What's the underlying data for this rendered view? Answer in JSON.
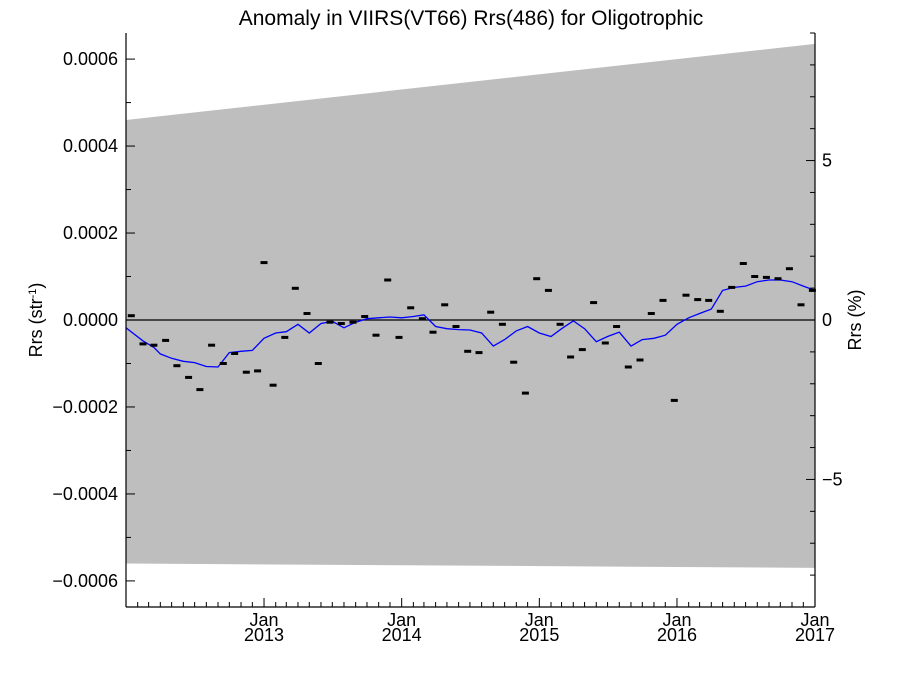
{
  "chart_data": {
    "type": "scatter",
    "title": "Anomaly in VIIRS(VT66) Rrs(486) for Oligotrophic",
    "ylabel": "Rrs (str",
    "ylabel_exponent": "-1",
    "ylabel_suffix": ")",
    "y2label": "Rrs (%)",
    "xlim": [
      "2012-01-01",
      "2017-01-01"
    ],
    "ylim": [
      -0.00066,
      0.00066
    ],
    "y2lim": [
      -9.0,
      9.0
    ],
    "x_ticks": [
      {
        "date": "2013-01-01",
        "month": "Jan",
        "year": "2013"
      },
      {
        "date": "2014-01-01",
        "month": "Jan",
        "year": "2014"
      },
      {
        "date": "2015-01-01",
        "month": "Jan",
        "year": "2015"
      },
      {
        "date": "2016-01-01",
        "month": "Jan",
        "year": "2016"
      },
      {
        "date": "2017-01-01",
        "month": "Jan",
        "year": "2017"
      }
    ],
    "y_ticks": [
      {
        "value": 0.0006,
        "label": "0.0006"
      },
      {
        "value": 0.0004,
        "label": "0.0004"
      },
      {
        "value": 0.0002,
        "label": "0.0002"
      },
      {
        "value": 0.0,
        "label": "0.0000"
      },
      {
        "value": -0.0002,
        "label": "−0.0002"
      },
      {
        "value": -0.0004,
        "label": "−0.0004"
      },
      {
        "value": -0.0006,
        "label": "−0.0006"
      }
    ],
    "y2_ticks": [
      {
        "value": 5,
        "label": "5"
      },
      {
        "value": 0,
        "label": "0"
      },
      {
        "value": -5,
        "label": "−5"
      }
    ],
    "reference_line": 0.0,
    "band": {
      "x": [
        "2012-01-01",
        "2017-01-01"
      ],
      "upper": [
        0.00046,
        0.000635
      ],
      "lower": [
        -0.00056,
        -0.00057
      ]
    },
    "colors": {
      "band": "#bebebe",
      "trend": "#0000ff",
      "points": "#000000"
    },
    "series": [
      {
        "type": "scatter",
        "points": [
          [
            "2012-01-15",
            1e-05
          ],
          [
            "2012-02-15",
            -5.5e-05
          ],
          [
            "2012-03-15",
            -5.8e-05
          ],
          [
            "2012-04-15",
            -4.7e-05
          ],
          [
            "2012-05-15",
            -0.000105
          ],
          [
            "2012-06-15",
            -0.000132
          ],
          [
            "2012-07-15",
            -0.00016
          ],
          [
            "2012-08-15",
            -5.8e-05
          ],
          [
            "2012-09-15",
            -0.0001
          ],
          [
            "2012-10-15",
            -7.7e-05
          ],
          [
            "2012-11-15",
            -0.00012
          ],
          [
            "2012-12-15",
            -0.000117
          ],
          [
            "2013-01-01",
            0.000132
          ],
          [
            "2013-01-25",
            -0.00015
          ],
          [
            "2013-02-25",
            -4e-05
          ],
          [
            "2013-03-25",
            7.3e-05
          ],
          [
            "2013-04-25",
            1.5e-05
          ],
          [
            "2013-05-25",
            -0.0001
          ],
          [
            "2013-06-25",
            -5e-06
          ],
          [
            "2013-07-25",
            -8e-06
          ],
          [
            "2013-08-25",
            -5e-06
          ],
          [
            "2013-09-25",
            8e-06
          ],
          [
            "2013-10-25",
            -3.5e-05
          ],
          [
            "2013-11-25",
            9.2e-05
          ],
          [
            "2013-12-25",
            -4e-05
          ],
          [
            "2014-01-25",
            2.8e-05
          ],
          [
            "2014-02-25",
            3e-06
          ],
          [
            "2014-03-25",
            -2.8e-05
          ],
          [
            "2014-04-25",
            3.5e-05
          ],
          [
            "2014-05-25",
            -1.5e-05
          ],
          [
            "2014-06-25",
            -7.2e-05
          ],
          [
            "2014-07-25",
            -7.5e-05
          ],
          [
            "2014-08-25",
            1.8e-05
          ],
          [
            "2014-09-25",
            -1e-05
          ],
          [
            "2014-10-25",
            -9.7e-05
          ],
          [
            "2014-11-25",
            -0.000168
          ],
          [
            "2014-12-25",
            9.5e-05
          ],
          [
            "2015-01-25",
            6.8e-05
          ],
          [
            "2015-02-25",
            -1e-05
          ],
          [
            "2015-03-25",
            -8.5e-05
          ],
          [
            "2015-04-25",
            -6.8e-05
          ],
          [
            "2015-05-25",
            4e-05
          ],
          [
            "2015-06-25",
            -5.3e-05
          ],
          [
            "2015-07-25",
            -1.5e-05
          ],
          [
            "2015-08-25",
            -0.000108
          ],
          [
            "2015-09-25",
            -9.2e-05
          ],
          [
            "2015-10-25",
            1.5e-05
          ],
          [
            "2015-11-25",
            4.5e-05
          ],
          [
            "2015-12-25",
            -0.000185
          ],
          [
            "2016-01-25",
            5.7e-05
          ],
          [
            "2016-02-25",
            4.7e-05
          ],
          [
            "2016-03-25",
            4.5e-05
          ],
          [
            "2016-04-25",
            2e-05
          ],
          [
            "2016-05-25",
            7.5e-05
          ],
          [
            "2016-06-25",
            0.00013
          ],
          [
            "2016-07-25",
            0.0001
          ],
          [
            "2016-08-25",
            9.8e-05
          ],
          [
            "2016-09-25",
            9.5e-05
          ],
          [
            "2016-10-25",
            0.000118
          ],
          [
            "2016-11-25",
            3.5e-05
          ],
          [
            "2016-12-25",
            6.8e-05
          ]
        ]
      },
      {
        "type": "line",
        "points": [
          [
            "2012-01-01",
            -1.8e-05
          ],
          [
            "2012-02-15",
            -4.8e-05
          ],
          [
            "2012-03-15",
            -6.3e-05
          ],
          [
            "2012-04-01",
            -7.8e-05
          ],
          [
            "2012-05-01",
            -8.8e-05
          ],
          [
            "2012-06-01",
            -9.5e-05
          ],
          [
            "2012-07-01",
            -9.8e-05
          ],
          [
            "2012-08-01",
            -0.000107
          ],
          [
            "2012-09-01",
            -0.000108
          ],
          [
            "2012-10-01",
            -7.5e-05
          ],
          [
            "2012-11-01",
            -7.2e-05
          ],
          [
            "2012-12-01",
            -7e-05
          ],
          [
            "2013-01-01",
            -4.2e-05
          ],
          [
            "2013-02-01",
            -3e-05
          ],
          [
            "2013-03-01",
            -2.7e-05
          ],
          [
            "2013-04-01",
            -1e-05
          ],
          [
            "2013-05-01",
            -3e-05
          ],
          [
            "2013-06-01",
            -8e-06
          ],
          [
            "2013-07-01",
            -3e-06
          ],
          [
            "2013-08-01",
            -1.8e-05
          ],
          [
            "2013-09-01",
            -5e-06
          ],
          [
            "2013-10-01",
            3e-06
          ],
          [
            "2013-11-01",
            5e-06
          ],
          [
            "2013-12-01",
            7e-06
          ],
          [
            "2014-01-01",
            5e-06
          ],
          [
            "2014-02-01",
            8e-06
          ],
          [
            "2014-03-01",
            1.2e-05
          ],
          [
            "2014-04-01",
            -1.5e-05
          ],
          [
            "2014-05-01",
            -2e-05
          ],
          [
            "2014-06-01",
            -2.2e-05
          ],
          [
            "2014-07-01",
            -2.3e-05
          ],
          [
            "2014-08-01",
            -3e-05
          ],
          [
            "2014-09-01",
            -6e-05
          ],
          [
            "2014-10-01",
            -4.5e-05
          ],
          [
            "2014-11-01",
            -2.5e-05
          ],
          [
            "2014-12-01",
            -1.5e-05
          ],
          [
            "2015-01-01",
            -3e-05
          ],
          [
            "2015-02-01",
            -3.8e-05
          ],
          [
            "2015-03-01",
            -2e-05
          ],
          [
            "2015-04-01",
            -2e-06
          ],
          [
            "2015-05-01",
            -2e-05
          ],
          [
            "2015-06-01",
            -5e-05
          ],
          [
            "2015-07-01",
            -3.8e-05
          ],
          [
            "2015-08-01",
            -2.8e-05
          ],
          [
            "2015-09-01",
            -6e-05
          ],
          [
            "2015-10-01",
            -4.5e-05
          ],
          [
            "2015-11-01",
            -4.2e-05
          ],
          [
            "2015-12-01",
            -3.5e-05
          ],
          [
            "2016-01-01",
            -1e-05
          ],
          [
            "2016-02-01",
            5e-06
          ],
          [
            "2016-03-01",
            1.5e-05
          ],
          [
            "2016-04-01",
            2.5e-05
          ],
          [
            "2016-05-01",
            6.8e-05
          ],
          [
            "2016-06-01",
            7.5e-05
          ],
          [
            "2016-07-01",
            7.8e-05
          ],
          [
            "2016-08-01",
            8.8e-05
          ],
          [
            "2016-09-01",
            9.2e-05
          ],
          [
            "2016-10-01",
            9.2e-05
          ],
          [
            "2016-11-01",
            8.8e-05
          ],
          [
            "2016-12-01",
            7.8e-05
          ],
          [
            "2017-01-01",
            6.8e-05
          ]
        ]
      }
    ]
  }
}
